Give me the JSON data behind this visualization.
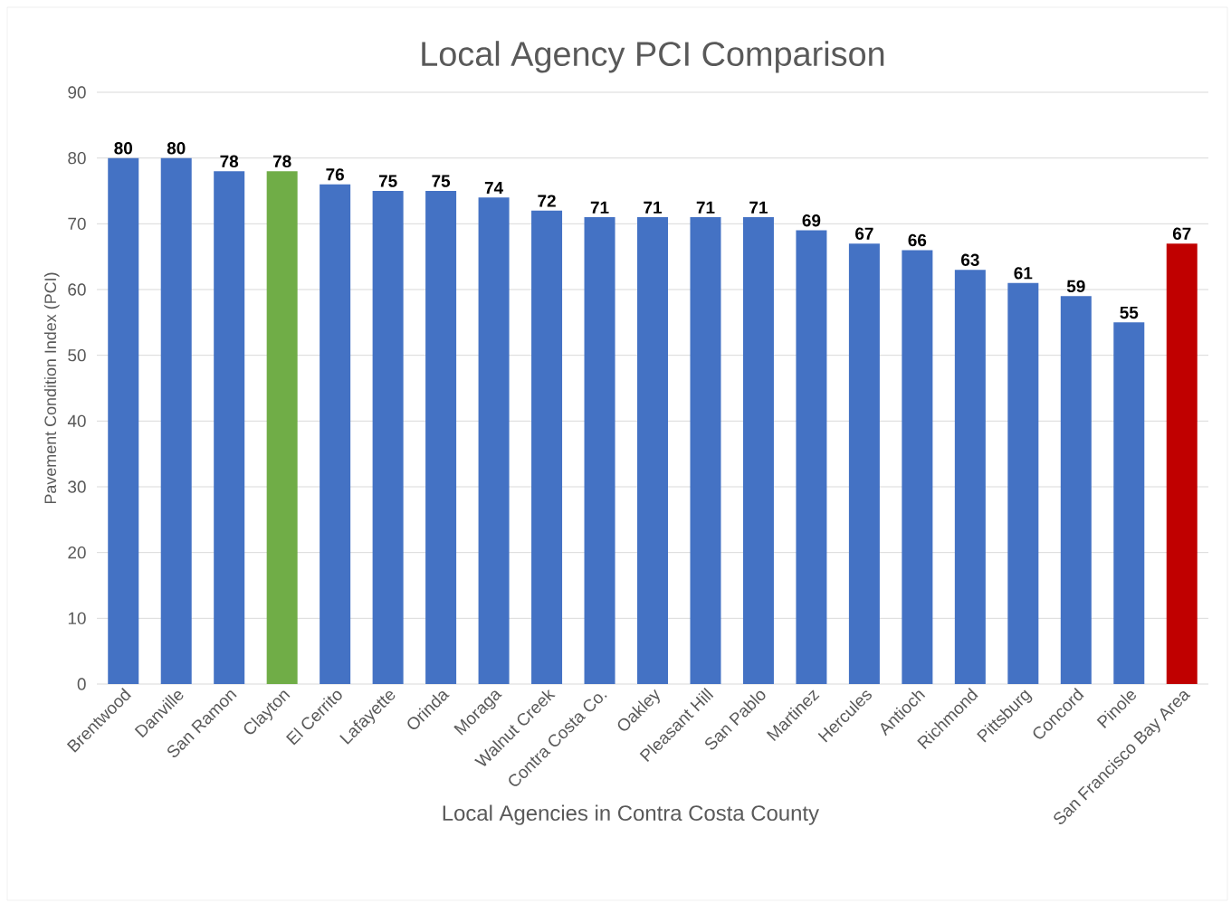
{
  "chart_data": {
    "type": "bar",
    "title": "Local Agency PCI Comparison",
    "xlabel": "Local Agencies in Contra Costa County",
    "ylabel": "Pavement Condition Index (PCI)",
    "categories": [
      "Brentwood",
      "Danville",
      "San Ramon",
      "Clayton",
      "El Cerrito",
      "Lafayette",
      "Orinda",
      "Moraga",
      "Walnut Creek",
      "Contra Costa Co.",
      "Oakley",
      "Pleasant Hill",
      "San Pablo",
      "Martinez",
      "Hercules",
      "Antioch",
      "Richmond",
      "Pittsburg",
      "Concord",
      "Pinole",
      "San Francisco Bay Area"
    ],
    "values": [
      80,
      80,
      78,
      78,
      76,
      75,
      75,
      74,
      72,
      71,
      71,
      71,
      71,
      69,
      67,
      66,
      63,
      61,
      59,
      55,
      67
    ],
    "colors": [
      "#4472c4",
      "#4472c4",
      "#4472c4",
      "#70ad47",
      "#4472c4",
      "#4472c4",
      "#4472c4",
      "#4472c4",
      "#4472c4",
      "#4472c4",
      "#4472c4",
      "#4472c4",
      "#4472c4",
      "#4472c4",
      "#4472c4",
      "#4472c4",
      "#4472c4",
      "#4472c4",
      "#4472c4",
      "#4472c4",
      "#c00000"
    ],
    "ylim": [
      0,
      90
    ],
    "yticks": [
      0,
      10,
      20,
      30,
      40,
      50,
      60,
      70,
      80,
      90
    ],
    "grid": "y",
    "data_labels": true
  }
}
